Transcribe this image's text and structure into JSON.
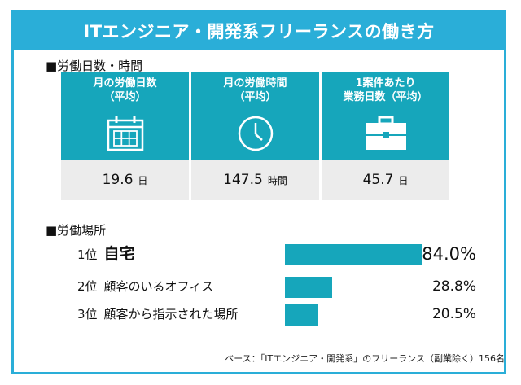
{
  "title": "ITエンジニア・開発系フリーランスの働き方",
  "section1": {
    "heading": "■労働日数・時間"
  },
  "stats": [
    {
      "label_line1": "月の労働日数",
      "label_line2": "（平均）",
      "icon": "calendar-icon",
      "value": "19.6",
      "unit": "日"
    },
    {
      "label_line1": "月の労働時間",
      "label_line2": "（平均）",
      "icon": "clock-icon",
      "value": "147.5",
      "unit": "時間"
    },
    {
      "label_line1": "1案件あたり",
      "label_line2": "業務日数（平均）",
      "icon": "briefcase-icon",
      "value": "45.7",
      "unit": "日"
    }
  ],
  "section2": {
    "heading": "■労働場所"
  },
  "ranking": [
    {
      "rank": "1位",
      "place": "自宅",
      "percent_text": "84.0%",
      "percent": 84.0
    },
    {
      "rank": "2位",
      "place": "顧客のいるオフィス",
      "percent_text": "28.8%",
      "percent": 28.8
    },
    {
      "rank": "3位",
      "place": "顧客から指示された場所",
      "percent_text": "20.5%",
      "percent": 20.5
    }
  ],
  "note": "ベース：「ITエンジニア・開発系」のフリーランス（副業除く）156名",
  "colors": {
    "accent": "#2aaed8",
    "teal": "#16a6bb",
    "value_bg": "#ececec"
  }
}
